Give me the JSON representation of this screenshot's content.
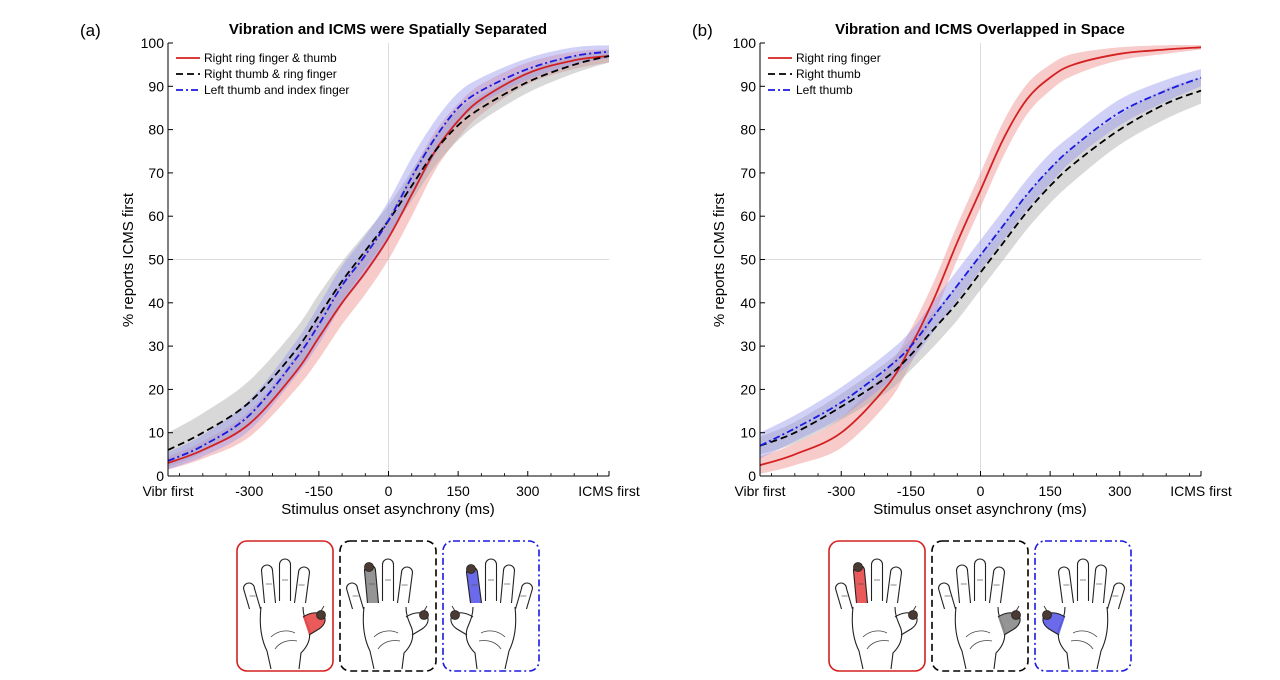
{
  "figure": {
    "colors": {
      "red": "#d42020",
      "black": "#000000",
      "blue": "#1a1ae0",
      "red_band": "#f08c8c",
      "black_band": "#a8a8a8",
      "blue_band": "#9a9af0"
    },
    "hand_icons": [
      {
        "panel": "a",
        "frame_style": "solid",
        "frame_color": "#d42020",
        "stimulated_finger": "thumb",
        "side": "right",
        "fill": "#e84848",
        "icon": "right-hand-icon"
      },
      {
        "panel": "a",
        "frame_style": "dashed",
        "frame_color": "#000000",
        "stimulated_finger": "ring",
        "side": "right",
        "fill": "#8a8a8a",
        "icon": "right-hand-icon"
      },
      {
        "panel": "a",
        "frame_style": "dashdot",
        "frame_color": "#1a1ae0",
        "stimulated_finger": "index",
        "side": "left",
        "fill": "#5a5ae8",
        "icon": "left-hand-icon"
      },
      {
        "panel": "b",
        "frame_style": "solid",
        "frame_color": "#d42020",
        "stimulated_finger": "ring",
        "side": "right",
        "fill": "#e84848",
        "icon": "right-hand-icon"
      },
      {
        "panel": "b",
        "frame_style": "dashed",
        "frame_color": "#000000",
        "stimulated_finger": "thumb",
        "side": "right",
        "fill": "#8a8a8a",
        "icon": "right-hand-icon"
      },
      {
        "panel": "b",
        "frame_style": "dashdot",
        "frame_color": "#1a1ae0",
        "stimulated_finger": "thumb",
        "side": "left",
        "fill": "#5a5ae8",
        "icon": "left-hand-icon"
      }
    ]
  },
  "chart_data": [
    {
      "panel_label": "(a)",
      "type": "line",
      "title": "Vibration and ICMS were Spatially Separated",
      "xlabel": "Stimulus onset asynchrony (ms)",
      "ylabel": "% reports ICMS first",
      "xlim": [
        -475,
        475
      ],
      "ylim": [
        0,
        100
      ],
      "x_ticks": [
        -475,
        -300,
        -150,
        0,
        150,
        300,
        475
      ],
      "x_tick_labels": [
        "Vibr first",
        "-300",
        "-150",
        "0",
        "150",
        "300",
        "ICMS first"
      ],
      "y_ticks": [
        0,
        10,
        20,
        30,
        40,
        50,
        60,
        70,
        80,
        90,
        100
      ],
      "y_tick_labels": [
        "0",
        "10",
        "20",
        "30",
        "40",
        "50",
        "60",
        "70",
        "80",
        "90",
        "100"
      ],
      "reference_lines": {
        "x": 0,
        "y": 50
      },
      "grid": false,
      "legend_position": "top-left",
      "x": [
        -475,
        -400,
        -300,
        -200,
        -150,
        -100,
        -50,
        0,
        50,
        100,
        150,
        200,
        300,
        400,
        475
      ],
      "series": [
        {
          "name": "Right ring finger & thumb",
          "style": "solid",
          "color": "#d42020",
          "band_color": "#f08c8c",
          "values": [
            3,
            6,
            12,
            24,
            32,
            40,
            47,
            55,
            65,
            75,
            82,
            87,
            93,
            96,
            97
          ],
          "band_width": [
            1.5,
            2,
            3,
            4,
            5,
            5,
            5,
            5,
            5,
            4.5,
            4,
            3.5,
            2.5,
            2,
            1.5
          ]
        },
        {
          "name": "Right thumb & ring finger",
          "style": "dashed",
          "color": "#000000",
          "band_color": "#a8a8a8",
          "values": [
            6,
            10,
            17,
            29,
            37,
            45,
            52,
            59,
            67,
            75,
            81,
            85,
            91,
            95,
            97
          ],
          "band_width": [
            4,
            4.5,
            5,
            5,
            5,
            4.5,
            4,
            3.5,
            3.5,
            3.5,
            3.5,
            3,
            2.5,
            2,
            1.5
          ]
        },
        {
          "name": "Left thumb and index finger",
          "style": "dashdot",
          "color": "#1a1ae0",
          "band_color": "#9a9af0",
          "values": [
            3.5,
            7,
            14,
            27,
            35,
            44,
            51,
            59,
            69,
            78,
            85,
            89,
            94,
            97,
            98
          ],
          "band_width": [
            2,
            2.5,
            3.5,
            4,
            4.5,
            4.5,
            4.5,
            4.5,
            4.5,
            4,
            3.5,
            3,
            2.5,
            2,
            1.5
          ]
        }
      ]
    },
    {
      "panel_label": "(b)",
      "type": "line",
      "title": "Vibration and ICMS Overlapped in Space",
      "xlabel": "Stimulus onset asynchrony (ms)",
      "ylabel": "% reports ICMS first",
      "xlim": [
        -475,
        475
      ],
      "ylim": [
        0,
        100
      ],
      "x_ticks": [
        -475,
        -300,
        -150,
        0,
        150,
        300,
        475
      ],
      "x_tick_labels": [
        "Vibr first",
        "-300",
        "-150",
        "0",
        "150",
        "300",
        "ICMS first"
      ],
      "y_ticks": [
        0,
        10,
        20,
        30,
        40,
        50,
        60,
        70,
        80,
        90,
        100
      ],
      "y_tick_labels": [
        "0",
        "10",
        "20",
        "30",
        "40",
        "50",
        "60",
        "70",
        "80",
        "90",
        "100"
      ],
      "reference_lines": {
        "x": 0,
        "y": 50
      },
      "grid": false,
      "legend_position": "top-left",
      "x": [
        -475,
        -400,
        -300,
        -200,
        -150,
        -100,
        -50,
        0,
        50,
        100,
        150,
        200,
        300,
        400,
        475
      ],
      "series": [
        {
          "name": "Right ring finger",
          "style": "solid",
          "color": "#d42020",
          "band_color": "#f08c8c",
          "values": [
            2.5,
            5,
            10,
            21,
            30,
            41,
            54,
            66,
            78,
            87,
            92,
            95,
            97.5,
            98.5,
            99
          ],
          "band_width": [
            2,
            2.5,
            3.5,
            4,
            4,
            4,
            4,
            4,
            4,
            3.5,
            3,
            2.5,
            1.5,
            1,
            0.5
          ]
        },
        {
          "name": "Right thumb",
          "style": "dashed",
          "color": "#000000",
          "band_color": "#a8a8a8",
          "values": [
            7,
            10,
            16,
            23,
            28,
            34,
            40,
            47,
            54,
            61,
            67,
            72,
            80,
            86,
            89
          ],
          "band_width": [
            2,
            2.5,
            3,
            3.5,
            3.5,
            4,
            4,
            4,
            4,
            4,
            4,
            4,
            3.5,
            3.5,
            3
          ]
        },
        {
          "name": "Left thumb",
          "style": "dashdot",
          "color": "#1a1ae0",
          "band_color": "#9a9af0",
          "values": [
            7,
            11,
            17,
            25,
            30,
            37,
            44,
            51,
            58,
            65,
            71,
            76,
            84,
            89,
            92
          ],
          "band_width": [
            3,
            3,
            3.5,
            3.5,
            3.5,
            3.5,
            3.5,
            3.5,
            3.5,
            3.5,
            3.5,
            3,
            3,
            2.5,
            2
          ]
        }
      ]
    }
  ]
}
